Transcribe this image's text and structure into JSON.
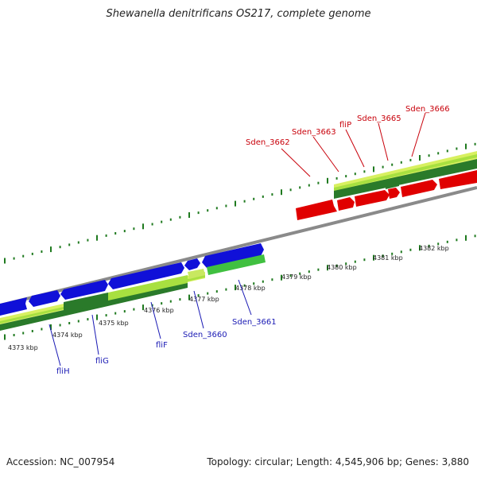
{
  "header": {
    "title": "Shewanella denitrificans OS217, complete genome"
  },
  "footer": {
    "accession": "Accession: NC_007954",
    "stats": "Topology: circular; Length: 4,545,906 bp; Genes: 3,880"
  },
  "colors": {
    "forward_gene": "#e00000",
    "reverse_gene": "#1010d8",
    "backbone": "#8a8a8a",
    "green_light": "#d8f060",
    "green_mid": "#40c040",
    "green_dark": "#2a7a2a",
    "tick": "#1f7a1f"
  },
  "kbp_labels": [
    "4373 kbp",
    "4374 kbp",
    "4375 kbp",
    "4376 kbp",
    "4377 kbp",
    "4378 kbp",
    "4379 kbp",
    "4380 kbp",
    "4381 kbp",
    "4382 kbp"
  ],
  "top_gene_labels": [
    "Sden_3662",
    "Sden_3663",
    "fliP",
    "Sden_3665",
    "Sden_3666"
  ],
  "bottom_gene_labels": [
    "fliH",
    "fliG",
    "fliF",
    "Sden_3660",
    "Sden_3661"
  ]
}
